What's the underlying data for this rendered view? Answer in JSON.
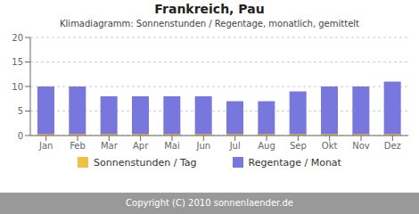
{
  "chart_data": {
    "type": "bar",
    "title": "Frankreich, Pau",
    "subtitle": "Klimadiagramm: Sonnenstunden / Regentage, monatlich, gemittelt",
    "categories": [
      "Jan",
      "Feb",
      "Mar",
      "Apr",
      "Mai",
      "Jun",
      "Jul",
      "Aug",
      "Sep",
      "Okt",
      "Nov",
      "Dez"
    ],
    "series": [
      {
        "name": "Sonnenstunden / Tag",
        "color": "#F0C040",
        "values": [
          0.3,
          0.3,
          0.3,
          0.3,
          0.3,
          0.3,
          0.3,
          0.3,
          0.3,
          0.3,
          0.3,
          0.3
        ]
      },
      {
        "name": "Regentage / Monat",
        "color": "#7777DD",
        "values": [
          10,
          10,
          8,
          8,
          8,
          8,
          7,
          7,
          9,
          10,
          10,
          11
        ]
      }
    ],
    "ylim": [
      0,
      20
    ],
    "yticks": [
      0,
      5,
      10,
      15,
      20
    ],
    "grid": true,
    "legend": "bottom",
    "annotations": [
      "Copyright (C) 2010 sonnenlaender.de"
    ]
  }
}
